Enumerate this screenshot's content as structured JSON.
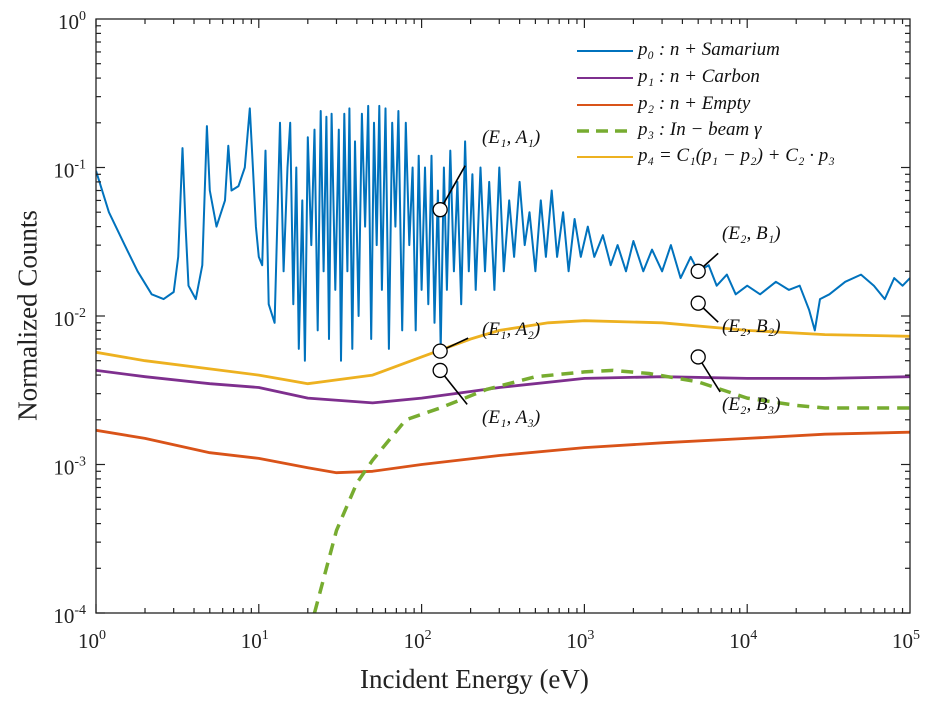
{
  "chart_data": {
    "type": "line",
    "title": "",
    "xlabel": "Incident Energy (eV)",
    "ylabel": "Normalized Counts",
    "xscale": "log",
    "yscale": "log",
    "xlim": [
      1,
      100000
    ],
    "ylim": [
      0.0001,
      1
    ],
    "grid": false,
    "legend_position": "top-right",
    "xticks": [
      {
        "base": "10",
        "exp": "0",
        "v": 1
      },
      {
        "base": "10",
        "exp": "1",
        "v": 10
      },
      {
        "base": "10",
        "exp": "2",
        "v": 100
      },
      {
        "base": "10",
        "exp": "3",
        "v": 1000
      },
      {
        "base": "10",
        "exp": "4",
        "v": 10000
      },
      {
        "base": "10",
        "exp": "5",
        "v": 100000
      }
    ],
    "yticks": [
      {
        "base": "10",
        "exp": "-4",
        "v": 0.0001
      },
      {
        "base": "10",
        "exp": "-3",
        "v": 0.001
      },
      {
        "base": "10",
        "exp": "-2",
        "v": 0.01
      },
      {
        "base": "10",
        "exp": "-1",
        "v": 0.1
      },
      {
        "base": "10",
        "exp": "0",
        "v": 1
      }
    ],
    "series": [
      {
        "name": "p₀ : n + Samarium",
        "color": "#0072BD",
        "style": "solid",
        "points": [
          [
            1,
            0.095
          ],
          [
            1.2,
            0.05
          ],
          [
            1.5,
            0.03
          ],
          [
            1.8,
            0.02
          ],
          [
            2.2,
            0.014
          ],
          [
            2.6,
            0.013
          ],
          [
            3.0,
            0.0145
          ],
          [
            3.2,
            0.025
          ],
          [
            3.4,
            0.135
          ],
          [
            3.55,
            0.04
          ],
          [
            3.7,
            0.016
          ],
          [
            4.1,
            0.013
          ],
          [
            4.5,
            0.022
          ],
          [
            4.8,
            0.19
          ],
          [
            5.0,
            0.07
          ],
          [
            5.5,
            0.04
          ],
          [
            6.2,
            0.06
          ],
          [
            6.5,
            0.14
          ],
          [
            6.8,
            0.07
          ],
          [
            7.5,
            0.075
          ],
          [
            8.2,
            0.1
          ],
          [
            8.8,
            0.25
          ],
          [
            9.2,
            0.1
          ],
          [
            9.6,
            0.04
          ],
          [
            10,
            0.025
          ],
          [
            10.5,
            0.022
          ],
          [
            11,
            0.13
          ],
          [
            11.5,
            0.012
          ],
          [
            12.5,
            0.009
          ],
          [
            13.5,
            0.2
          ],
          [
            14.2,
            0.02
          ],
          [
            15,
            0.1
          ],
          [
            15.6,
            0.2
          ],
          [
            16.3,
            0.012
          ],
          [
            17,
            0.1
          ],
          [
            17.6,
            0.006
          ],
          [
            18.5,
            0.06
          ],
          [
            19.2,
            0.005
          ],
          [
            20,
            0.16
          ],
          [
            21,
            0.03
          ],
          [
            22,
            0.18
          ],
          [
            23,
            0.008
          ],
          [
            24,
            0.24
          ],
          [
            25,
            0.02
          ],
          [
            26,
            0.22
          ],
          [
            27,
            0.007
          ],
          [
            28,
            0.23
          ],
          [
            29.5,
            0.015
          ],
          [
            31,
            0.18
          ],
          [
            32,
            0.005
          ],
          [
            33.5,
            0.23
          ],
          [
            35,
            0.02
          ],
          [
            36,
            0.25
          ],
          [
            37.5,
            0.006
          ],
          [
            39,
            0.15
          ],
          [
            41,
            0.01
          ],
          [
            43,
            0.23
          ],
          [
            45,
            0.04
          ],
          [
            47,
            0.26
          ],
          [
            49,
            0.007
          ],
          [
            51,
            0.2
          ],
          [
            53,
            0.03
          ],
          [
            55,
            0.26
          ],
          [
            57,
            0.015
          ],
          [
            60,
            0.25
          ],
          [
            63,
            0.006
          ],
          [
            66,
            0.2
          ],
          [
            69,
            0.04
          ],
          [
            72,
            0.24
          ],
          [
            76,
            0.008
          ],
          [
            80,
            0.2
          ],
          [
            84,
            0.03
          ],
          [
            88,
            0.1
          ],
          [
            92,
            0.008
          ],
          [
            96,
            0.12
          ],
          [
            100,
            0.015
          ],
          [
            105,
            0.1
          ],
          [
            110,
            0.012
          ],
          [
            115,
            0.12
          ],
          [
            120,
            0.009
          ],
          [
            126,
            0.07
          ],
          [
            131,
            0.006
          ],
          [
            137,
            0.1
          ],
          [
            143,
            0.015
          ],
          [
            150,
            0.13
          ],
          [
            158,
            0.02
          ],
          [
            166,
            0.08
          ],
          [
            175,
            0.012
          ],
          [
            185,
            0.15
          ],
          [
            195,
            0.02
          ],
          [
            205,
            0.09
          ],
          [
            215,
            0.015
          ],
          [
            230,
            0.1
          ],
          [
            245,
            0.02
          ],
          [
            260,
            0.08
          ],
          [
            280,
            0.015
          ],
          [
            300,
            0.1
          ],
          [
            320,
            0.02
          ],
          [
            345,
            0.06
          ],
          [
            370,
            0.025
          ],
          [
            400,
            0.08
          ],
          [
            430,
            0.03
          ],
          [
            460,
            0.05
          ],
          [
            500,
            0.02
          ],
          [
            540,
            0.06
          ],
          [
            580,
            0.025
          ],
          [
            630,
            0.07
          ],
          [
            680,
            0.025
          ],
          [
            740,
            0.05
          ],
          [
            800,
            0.02
          ],
          [
            870,
            0.045
          ],
          [
            950,
            0.025
          ],
          [
            1050,
            0.04
          ],
          [
            1150,
            0.025
          ],
          [
            1300,
            0.035
          ],
          [
            1450,
            0.022
          ],
          [
            1600,
            0.03
          ],
          [
            1800,
            0.02
          ],
          [
            2000,
            0.032
          ],
          [
            2300,
            0.02
          ],
          [
            2600,
            0.028
          ],
          [
            3000,
            0.02
          ],
          [
            3400,
            0.03
          ],
          [
            3900,
            0.018
          ],
          [
            4500,
            0.025
          ],
          [
            5000,
            0.02
          ],
          [
            5800,
            0.022
          ],
          [
            6500,
            0.016
          ],
          [
            7500,
            0.019
          ],
          [
            8500,
            0.014
          ],
          [
            10000,
            0.016
          ],
          [
            12000,
            0.014
          ],
          [
            15000,
            0.017
          ],
          [
            18000,
            0.015
          ],
          [
            21000,
            0.016
          ],
          [
            24000,
            0.011
          ],
          [
            26000,
            0.008
          ],
          [
            28000,
            0.013
          ],
          [
            32000,
            0.014
          ],
          [
            40000,
            0.017
          ],
          [
            50000,
            0.019
          ],
          [
            60000,
            0.016
          ],
          [
            70000,
            0.013
          ],
          [
            80000,
            0.018
          ],
          [
            90000,
            0.016
          ],
          [
            100000,
            0.018
          ]
        ]
      },
      {
        "name": "p₁ : n + Carbon",
        "color": "#7E2F8E",
        "style": "solid",
        "points": [
          [
            1,
            0.0043
          ],
          [
            2,
            0.0039
          ],
          [
            5,
            0.0035
          ],
          [
            10,
            0.0033
          ],
          [
            20,
            0.0028
          ],
          [
            50,
            0.0026
          ],
          [
            100,
            0.0028
          ],
          [
            200,
            0.0031
          ],
          [
            300,
            0.0033
          ],
          [
            1000,
            0.0038
          ],
          [
            3000,
            0.0039
          ],
          [
            10000,
            0.0038
          ],
          [
            30000,
            0.0038
          ],
          [
            100000,
            0.0039
          ]
        ]
      },
      {
        "name": "p₂ : n + Empty",
        "color": "#D95319",
        "style": "solid",
        "points": [
          [
            1,
            0.0017
          ],
          [
            2,
            0.0015
          ],
          [
            5,
            0.0012
          ],
          [
            10,
            0.0011
          ],
          [
            20,
            0.00095
          ],
          [
            30,
            0.00088
          ],
          [
            50,
            0.0009
          ],
          [
            100,
            0.001
          ],
          [
            300,
            0.00115
          ],
          [
            1000,
            0.0013
          ],
          [
            3000,
            0.0014
          ],
          [
            10000,
            0.0015
          ],
          [
            30000,
            0.0016
          ],
          [
            100000,
            0.00165
          ]
        ]
      },
      {
        "name": "p₃ : In − beam γ",
        "color": "#77AC30",
        "style": "dashed",
        "points": [
          [
            22,
            0.0001
          ],
          [
            26,
            0.0002
          ],
          [
            30,
            0.00036
          ],
          [
            40,
            0.00075
          ],
          [
            50,
            0.00107
          ],
          [
            80,
            0.002
          ],
          [
            130,
            0.0024
          ],
          [
            250,
            0.0032
          ],
          [
            500,
            0.0039
          ],
          [
            1000,
            0.0042
          ],
          [
            1500,
            0.0043
          ],
          [
            2500,
            0.0041
          ],
          [
            5000,
            0.0036
          ],
          [
            10000,
            0.0028
          ],
          [
            20000,
            0.0025
          ],
          [
            30000,
            0.0024
          ],
          [
            100000,
            0.0024
          ]
        ]
      },
      {
        "name": "p₄ = C₁(p₁ − p₂) + C₂ · p₃",
        "color": "#EDB120",
        "style": "solid",
        "points": [
          [
            1,
            0.0057
          ],
          [
            2,
            0.005
          ],
          [
            5,
            0.0044
          ],
          [
            10,
            0.004
          ],
          [
            20,
            0.0035
          ],
          [
            50,
            0.004
          ],
          [
            100,
            0.0053
          ],
          [
            200,
            0.007
          ],
          [
            300,
            0.008
          ],
          [
            600,
            0.009
          ],
          [
            1000,
            0.0093
          ],
          [
            3000,
            0.009
          ],
          [
            10000,
            0.008
          ],
          [
            30000,
            0.0075
          ],
          [
            100000,
            0.0073
          ]
        ]
      }
    ],
    "annotations": [
      {
        "label": "(E₁, A₁)",
        "x": 130,
        "y": 0.052
      },
      {
        "label": "(E₁, A₂)",
        "x": 130,
        "y": 0.0058
      },
      {
        "label": "(E₁, A₃)",
        "x": 130,
        "y": 0.0043
      },
      {
        "label": "(E₂, B₁)",
        "x": 5000,
        "y": 0.02
      },
      {
        "label": "(E₂, B₂)",
        "x": 5000,
        "y": 0.0122
      },
      {
        "label": "(E₂, B₃)",
        "x": 5000,
        "y": 0.0053
      }
    ]
  }
}
